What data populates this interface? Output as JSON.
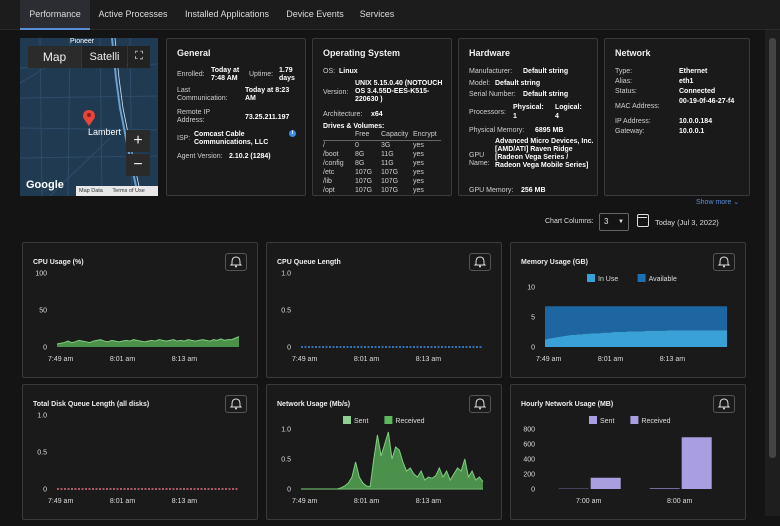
{
  "tabs": [
    "Performance",
    "Active Processes",
    "Installed Applications",
    "Device Events",
    "Services"
  ],
  "map": {
    "type_map": "Map",
    "type_satellite": "Satelli",
    "city": "Lambert",
    "city2": "Pioneer",
    "zoom_in": "+",
    "zoom_out": "−",
    "brand": "Google",
    "footer": [
      "Map Data",
      "Terms of Use"
    ]
  },
  "general": {
    "title": "General",
    "enrolled_label": "Enrolled:",
    "enrolled_value": "Today at 7:48 AM",
    "uptime_label": "Uptime:",
    "uptime_value": "1.79 days",
    "lastcomm_label": "Last Communication:",
    "lastcomm_value": "Today at 8:23 AM",
    "remote_label": "Remote IP Address:",
    "remote_value": "73.25.211.197",
    "isp_label": "ISP:",
    "isp_value": "Comcast Cable Communications, LLC",
    "agent_label": "Agent Version:",
    "agent_value": "2.10.2 (1284)"
  },
  "os": {
    "title": "Operating System",
    "os_label": "OS:",
    "os_value": "Linux",
    "version_label": "Version:",
    "version_value": "UNIX 5.15.0.40 (NOTOUCH OS 3.4.55D-EES-K515-220630 )",
    "arch_label": "Architecture:",
    "arch_value": "x64",
    "drives_title": "Drives & Volumes:",
    "drive_headers": [
      "Free",
      "Capacity",
      "Encrypt"
    ],
    "drives": [
      [
        "/",
        "0",
        "3G",
        "yes"
      ],
      [
        "/boot",
        "8G",
        "11G",
        "yes"
      ],
      [
        "/config",
        "8G",
        "11G",
        "yes"
      ],
      [
        "/etc",
        "107G",
        "107G",
        "yes"
      ],
      [
        "/lib",
        "107G",
        "107G",
        "yes"
      ],
      [
        "/opt",
        "107G",
        "107G",
        "yes"
      ]
    ]
  },
  "hardware": {
    "title": "Hardware",
    "manu_label": "Manufacturer:",
    "manu_value": "Default string",
    "model_label": "Model:",
    "model_value": "Default string",
    "serial_label": "Serial Number:",
    "serial_value": "Default string",
    "proc_label": "Processors:",
    "physical_label": "Physical:",
    "physical_value": "1",
    "logical_label": "Logical:",
    "logical_value": "4",
    "mem_label": "Physical Memory:",
    "mem_value": "6895 MB",
    "gpu_label": "GPU Name:",
    "gpu_value": "Advanced Micro Devices, Inc. [AMD/ATI] Raven Ridge [Radeon Vega Series / Radeon Vega Mobile Series]",
    "gpumem_label": "GPU Memory:",
    "gpumem_value": "256 MB"
  },
  "network": {
    "title": "Network",
    "type_label": "Type:",
    "type_value": "Ethernet",
    "alias_label": "Alias:",
    "alias_value": "eth1",
    "status_label": "Status:",
    "status_value": "Connected",
    "mac_label": "MAC Address:",
    "mac_value": "00-19-0f-46-27-f4",
    "ip_label": "IP Address:",
    "ip_value": "10.0.0.184",
    "gw_label": "Gateway:",
    "gw_value": "10.0.0.1"
  },
  "controls": {
    "show_more": "Show more",
    "chart_columns_label": "Chart Columns:",
    "chart_columns_value": "3",
    "date_label": "Today (Jul 3, 2022)"
  },
  "colors": {
    "accent": "#5a8fd6",
    "green": "#5cb85c",
    "blue_inuse": "#3aa0d8",
    "blue_available": "#1f6fb0",
    "purple": "#a99ee0"
  },
  "charts": [
    {
      "title": "CPU Usage (%)",
      "chart_data": {
        "type": "area",
        "ylim": [
          0,
          100
        ],
        "yticks": [
          "100",
          "50",
          "0"
        ],
        "xticks": [
          "7:49 am",
          "8:01 am",
          "8:13 am"
        ],
        "x": [
          0,
          1,
          2,
          3,
          4,
          5,
          6,
          7,
          8,
          9,
          10,
          11,
          12,
          13,
          14,
          15,
          16,
          17,
          18,
          19,
          20,
          21,
          22,
          23,
          24,
          25,
          26,
          27,
          28,
          29,
          30,
          31,
          32,
          33,
          34,
          35,
          36,
          37,
          38,
          39,
          40,
          41,
          42,
          43,
          44,
          45,
          46,
          47,
          48,
          49,
          50
        ],
        "values": [
          4,
          5,
          6,
          8,
          6,
          7,
          9,
          8,
          7,
          6,
          8,
          9,
          10,
          8,
          7,
          9,
          8,
          7,
          8,
          9,
          8,
          10,
          9,
          8,
          7,
          8,
          9,
          8,
          10,
          9,
          8,
          9,
          10,
          8,
          9,
          8,
          10,
          9,
          8,
          9,
          10,
          9,
          8,
          10,
          9,
          11,
          9,
          10,
          10,
          12,
          14
        ]
      }
    },
    {
      "title": "CPU Queue Length",
      "chart_data": {
        "type": "line",
        "ylim": [
          0,
          1
        ],
        "yticks": [
          "1.0",
          "0.5",
          "0"
        ],
        "xticks": [
          "7:49 am",
          "8:01 am",
          "8:13 am"
        ],
        "values": [
          0,
          0,
          0,
          0,
          0,
          0,
          0,
          0,
          0,
          0,
          0,
          0,
          0,
          0,
          0,
          0,
          0,
          0,
          0,
          0,
          0,
          0,
          0,
          0,
          0,
          0,
          0,
          0,
          0,
          0,
          0,
          0,
          0,
          0,
          0,
          0,
          0,
          0,
          0,
          0,
          0,
          0,
          0,
          0,
          0,
          0,
          0,
          0,
          0,
          0,
          0
        ]
      }
    },
    {
      "title": "Memory Usage (GB)",
      "chart_data": {
        "type": "area",
        "ylim": [
          0,
          10
        ],
        "yticks": [
          "10",
          "5",
          "0"
        ],
        "xticks": [
          "7:49 am",
          "8:01 am",
          "8:13 am"
        ],
        "series": [
          {
            "name": "In Use",
            "values": [
              1.2,
              1.4,
              1.5,
              1.6,
              1.7,
              1.8,
              1.9,
              2.0,
              2.0,
              2.1,
              2.1,
              2.2,
              2.2,
              2.3,
              2.3,
              2.3,
              2.4,
              2.4,
              2.4,
              2.5,
              2.5,
              2.5,
              2.5,
              2.6,
              2.6,
              2.6,
              2.6,
              2.6,
              2.7,
              2.7,
              2.7,
              2.7,
              2.7,
              2.7,
              2.8,
              2.8,
              2.8,
              2.8,
              2.8,
              2.8,
              2.8,
              2.8,
              2.8,
              2.8,
              2.8,
              2.8,
              2.8,
              2.8,
              2.8,
              2.8,
              2.8
            ]
          },
          {
            "name": "Available",
            "values": [
              5.6,
              5.4,
              5.3,
              5.2,
              5.1,
              5.0,
              4.9,
              4.8,
              4.8,
              4.7,
              4.7,
              4.6,
              4.6,
              4.5,
              4.5,
              4.5,
              4.4,
              4.4,
              4.4,
              4.3,
              4.3,
              4.3,
              4.3,
              4.2,
              4.2,
              4.2,
              4.2,
              4.2,
              4.1,
              4.1,
              4.1,
              4.1,
              4.1,
              4.1,
              4.0,
              4.0,
              4.0,
              4.0,
              4.0,
              4.0,
              4.0,
              4.0,
              4.0,
              4.0,
              4.0,
              4.0,
              4.0,
              4.0,
              4.0,
              4.0,
              4.0
            ]
          }
        ]
      }
    },
    {
      "title": "Total Disk Queue Length (all disks)",
      "chart_data": {
        "type": "line",
        "ylim": [
          0,
          1
        ],
        "yticks": [
          "1.0",
          "0.5",
          "0"
        ],
        "xticks": [
          "7:49 am",
          "8:01 am",
          "8:13 am"
        ],
        "values": [
          0,
          0,
          0,
          0,
          0,
          0,
          0,
          0,
          0,
          0,
          0,
          0,
          0,
          0,
          0,
          0,
          0,
          0,
          0,
          0,
          0,
          0,
          0,
          0,
          0,
          0,
          0,
          0,
          0,
          0,
          0,
          0,
          0,
          0,
          0,
          0,
          0,
          0,
          0,
          0,
          0,
          0,
          0,
          0,
          0,
          0,
          0,
          0,
          0,
          0,
          0
        ]
      }
    },
    {
      "title": "Network Usage (Mb/s)",
      "chart_data": {
        "type": "area",
        "ylim": [
          0,
          1
        ],
        "yticks": [
          "1.0",
          "0.5",
          "0"
        ],
        "xticks": [
          "7:49 am",
          "8:01 am",
          "8:13 am"
        ],
        "series": [
          {
            "name": "Sent",
            "values": [
              0,
              0,
              0,
              0,
              0,
              0,
              0,
              0,
              0,
              0,
              0,
              0,
              0,
              0,
              0,
              0,
              0,
              0,
              0,
              0,
              0,
              0,
              0,
              0,
              0,
              0,
              0,
              0,
              0,
              0,
              0,
              0,
              0,
              0,
              0,
              0,
              0,
              0,
              0,
              0,
              0,
              0,
              0,
              0,
              0,
              0,
              0,
              0,
              0,
              0,
              0
            ]
          },
          {
            "name": "Received",
            "values": [
              0,
              0,
              0,
              0,
              0,
              0,
              0,
              0,
              0,
              0,
              0,
              0.02,
              0.05,
              0.1,
              0.2,
              0.45,
              0.2,
              0.1,
              0.05,
              0.04,
              0.5,
              0.9,
              0.55,
              0.75,
              0.95,
              0.5,
              0.7,
              0.65,
              0.45,
              0.3,
              0.35,
              0.25,
              0.2,
              0.3,
              0.15,
              0.2,
              0.18,
              0.22,
              0.35,
              0.2,
              0.3,
              0.15,
              0.25,
              0.35,
              0.3,
              0.5,
              0.2,
              0.3,
              0.15,
              0.2,
              0.12
            ]
          }
        ]
      }
    },
    {
      "title": "Hourly Network Usage (MB)",
      "chart_data": {
        "type": "bar",
        "ylim": [
          0,
          800
        ],
        "yticks": [
          "800",
          "600",
          "400",
          "200",
          "0"
        ],
        "categories": [
          "7:00 am",
          "8:00 am"
        ],
        "series": [
          {
            "name": "Sent",
            "values": [
              5,
              10
            ]
          },
          {
            "name": "Received",
            "values": [
              150,
              690
            ]
          }
        ]
      }
    }
  ]
}
